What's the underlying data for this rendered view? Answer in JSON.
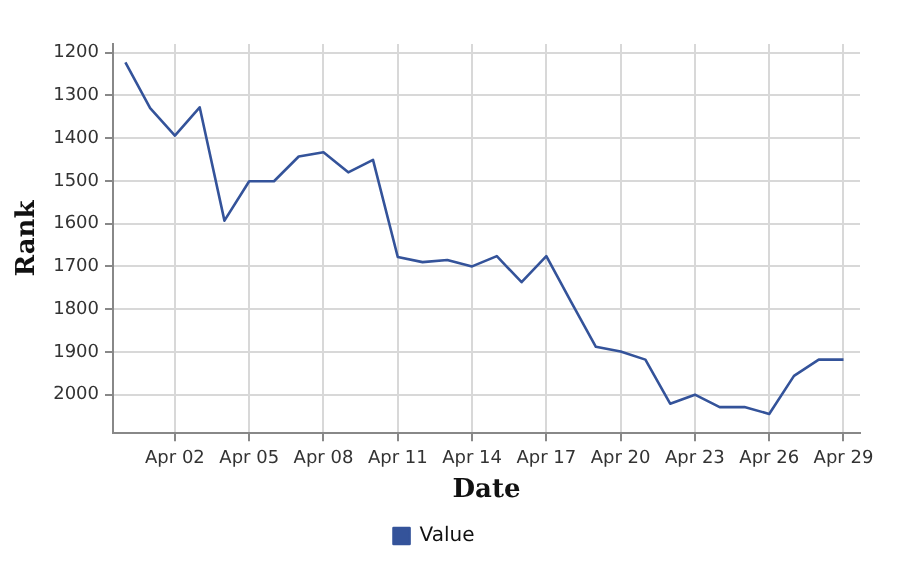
{
  "chart_data": {
    "type": "line",
    "xlabel": "Date",
    "ylabel": "Rank",
    "x": [
      "--03-31",
      "--04-01",
      "--04-02",
      "--04-03",
      "--04-04",
      "--04-05",
      "--04-06",
      "--04-07",
      "--04-08",
      "--04-09",
      "--04-10",
      "--04-11",
      "--04-12",
      "--04-13",
      "--04-14",
      "--04-15",
      "--04-16",
      "--04-17",
      "--04-18",
      "--04-19",
      "--04-20",
      "--04-21",
      "--04-22",
      "--04-23",
      "--04-24",
      "--04-25",
      "--04-26",
      "--04-27",
      "--04-28",
      "--04-29"
    ],
    "series": [
      {
        "name": "Value",
        "color": "#34539a",
        "values": [
          1223,
          1330,
          1394,
          1328,
          1593,
          1501,
          1501,
          1443,
          1433,
          1480,
          1451,
          1678,
          1690,
          1685,
          1700,
          1676,
          1737,
          1676,
          1783,
          1888,
          1899,
          1918,
          2021,
          2000,
          2029,
          2029,
          2045,
          1956,
          1918,
          1918
        ]
      }
    ],
    "xlim": [
      "--03-30T12:00",
      "--04-29T16:00"
    ],
    "xticks": [
      {
        "value": "--04-02",
        "label": "Apr 02"
      },
      {
        "value": "--04-05",
        "label": "Apr 05"
      },
      {
        "value": "--04-08",
        "label": "Apr 08"
      },
      {
        "value": "--04-11",
        "label": "Apr 11"
      },
      {
        "value": "--04-14",
        "label": "Apr 14"
      },
      {
        "value": "--04-17",
        "label": "Apr 17"
      },
      {
        "value": "--04-20",
        "label": "Apr 20"
      },
      {
        "value": "--04-23",
        "label": "Apr 23"
      },
      {
        "value": "--04-26",
        "label": "Apr 26"
      },
      {
        "value": "--04-29",
        "label": "Apr 29"
      }
    ],
    "ylim": [
      2090,
      1180
    ],
    "yticks": [
      1200,
      1300,
      1400,
      1500,
      1600,
      1700,
      1800,
      1900,
      2000
    ],
    "grid": true,
    "legend": "bottom",
    "marker": "none",
    "line_style": "solid"
  }
}
